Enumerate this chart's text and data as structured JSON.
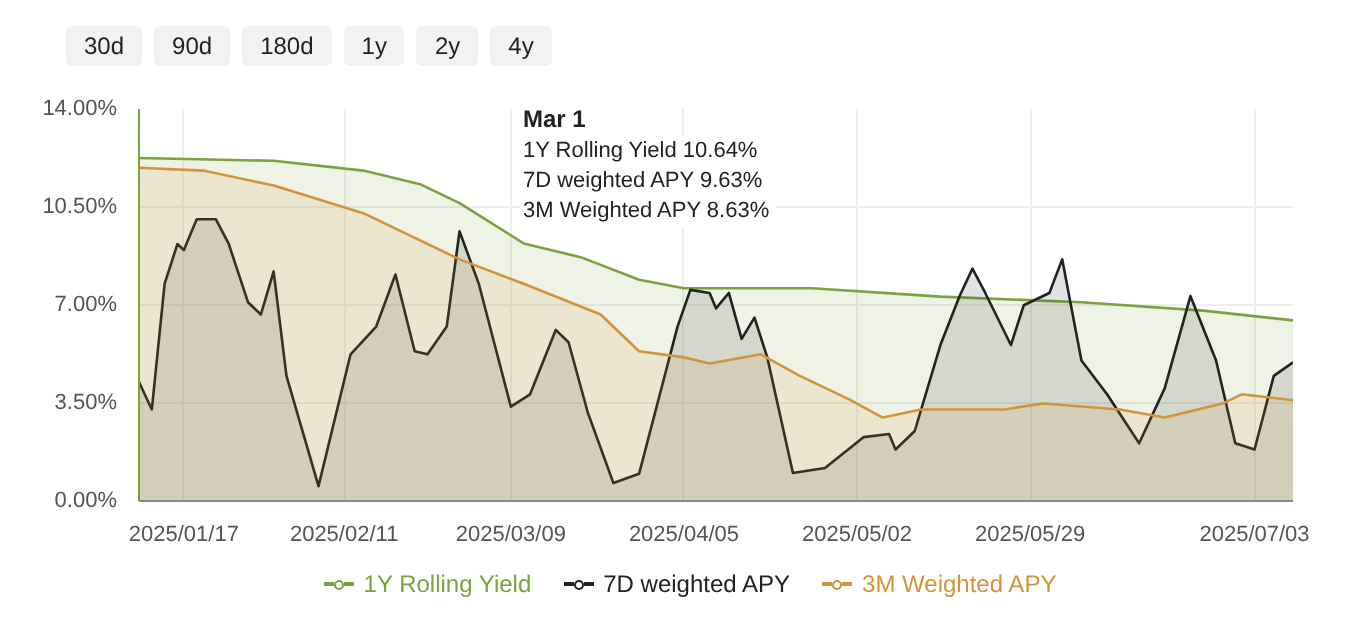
{
  "chart_data": {
    "type": "area",
    "xlim": [
      "2025-01-10",
      "2025-07-09"
    ],
    "ylim": [
      0,
      14
    ],
    "yticks": [
      {
        "value": 0,
        "label": "0.00%"
      },
      {
        "value": 3.5,
        "label": "3.50%"
      },
      {
        "value": 7,
        "label": "7.00%"
      },
      {
        "value": 10.5,
        "label": "10.50%"
      },
      {
        "value": 14,
        "label": "14.00%"
      }
    ],
    "xticks": [
      {
        "value": "2025-01-17",
        "label": "2025/01/17"
      },
      {
        "value": "2025-02-11",
        "label": "2025/02/11"
      },
      {
        "value": "2025-03-09",
        "label": "2025/03/09"
      },
      {
        "value": "2025-04-05",
        "label": "2025/04/05"
      },
      {
        "value": "2025-05-02",
        "label": "2025/05/02"
      },
      {
        "value": "2025-05-29",
        "label": "2025/05/29"
      },
      {
        "value": "2025-07-03",
        "label": "2025/07/03"
      }
    ],
    "grid": true,
    "legend": "bottom",
    "marker": "none",
    "line_style": "solid",
    "series": [
      {
        "name": "1Y Rolling Yield",
        "color": "#7ba23f",
        "x": [
          "2025-01-10",
          "2025-01-31",
          "2025-02-14",
          "2025-02-23",
          "2025-03-01",
          "2025-03-11",
          "2025-03-20",
          "2025-03-29",
          "2025-04-05",
          "2025-04-25",
          "2025-05-15",
          "2025-06-06",
          "2025-06-25",
          "2025-07-09"
        ],
        "values": [
          12.25,
          12.15,
          11.8,
          11.3,
          10.64,
          9.2,
          8.7,
          7.9,
          7.6,
          7.6,
          7.3,
          7.1,
          6.8,
          6.45
        ]
      },
      {
        "name": "7D weighted APY",
        "color": "#222222",
        "x": [
          "2025-01-10",
          "2025-01-12",
          "2025-01-14",
          "2025-01-16",
          "2025-01-17",
          "2025-01-19",
          "2025-01-22",
          "2025-01-24",
          "2025-01-27",
          "2025-01-29",
          "2025-01-31",
          "2025-02-02",
          "2025-02-07",
          "2025-02-12",
          "2025-02-16",
          "2025-02-19",
          "2025-02-22",
          "2025-02-24",
          "2025-02-27",
          "2025-03-01",
          "2025-03-04",
          "2025-03-09",
          "2025-03-12",
          "2025-03-16",
          "2025-03-18",
          "2025-03-21",
          "2025-03-25",
          "2025-03-29",
          "2025-04-04",
          "2025-04-06",
          "2025-04-09",
          "2025-04-10",
          "2025-04-12",
          "2025-04-14",
          "2025-04-16",
          "2025-04-18",
          "2025-04-22",
          "2025-04-27",
          "2025-05-03",
          "2025-05-07",
          "2025-05-08",
          "2025-05-11",
          "2025-05-15",
          "2025-05-18",
          "2025-05-20",
          "2025-05-22",
          "2025-05-26",
          "2025-05-28",
          "2025-06-01",
          "2025-06-03",
          "2025-06-06",
          "2025-06-10",
          "2025-06-15",
          "2025-06-19",
          "2025-06-23",
          "2025-06-27",
          "2025-06-30",
          "2025-07-03",
          "2025-07-06",
          "2025-07-09"
        ],
        "values": [
          4.25,
          3.27,
          7.76,
          9.18,
          8.96,
          10.06,
          10.06,
          9.18,
          7.1,
          6.66,
          8.2,
          4.47,
          0.53,
          5.24,
          6.23,
          8.09,
          5.35,
          5.24,
          6.23,
          9.63,
          7.76,
          3.37,
          3.81,
          6.11,
          5.67,
          3.16,
          0.64,
          0.97,
          6.23,
          7.54,
          7.43,
          6.88,
          7.43,
          5.79,
          6.55,
          5.13,
          1.0,
          1.18,
          2.28,
          2.39,
          1.84,
          2.5,
          5.57,
          7.32,
          8.3,
          7.43,
          5.57,
          6.99,
          7.43,
          8.63,
          5.02,
          3.81,
          2.06,
          4.03,
          7.32,
          5.02,
          2.06,
          1.84,
          4.47,
          4.95
        ]
      },
      {
        "name": "3M Weighted APY",
        "color": "#d4933a",
        "x": [
          "2025-01-10",
          "2025-01-20",
          "2025-01-31",
          "2025-02-14",
          "2025-03-01",
          "2025-03-11",
          "2025-03-23",
          "2025-03-29",
          "2025-04-05",
          "2025-04-09",
          "2025-04-17",
          "2025-04-23",
          "2025-05-01",
          "2025-05-06",
          "2025-05-12",
          "2025-05-25",
          "2025-05-31",
          "2025-06-12",
          "2025-06-19",
          "2025-06-28",
          "2025-07-01",
          "2025-07-09"
        ],
        "values": [
          11.9,
          11.8,
          11.27,
          10.28,
          8.63,
          7.76,
          6.66,
          5.35,
          5.13,
          4.91,
          5.24,
          4.48,
          3.6,
          2.98,
          3.27,
          3.27,
          3.48,
          3.27,
          2.98,
          3.48,
          3.81,
          3.6
        ]
      }
    ],
    "annotations": [
      "30d",
      "90d",
      "180d",
      "1y",
      "2y",
      "4y",
      {
        "text": "Mar 1"
      },
      {
        "text": "1Y Rolling Yield 10.64%"
      },
      {
        "text": "7D weighted APY 9.63%"
      },
      {
        "text": "3M Weighted APY 8.63%"
      }
    ]
  }
}
